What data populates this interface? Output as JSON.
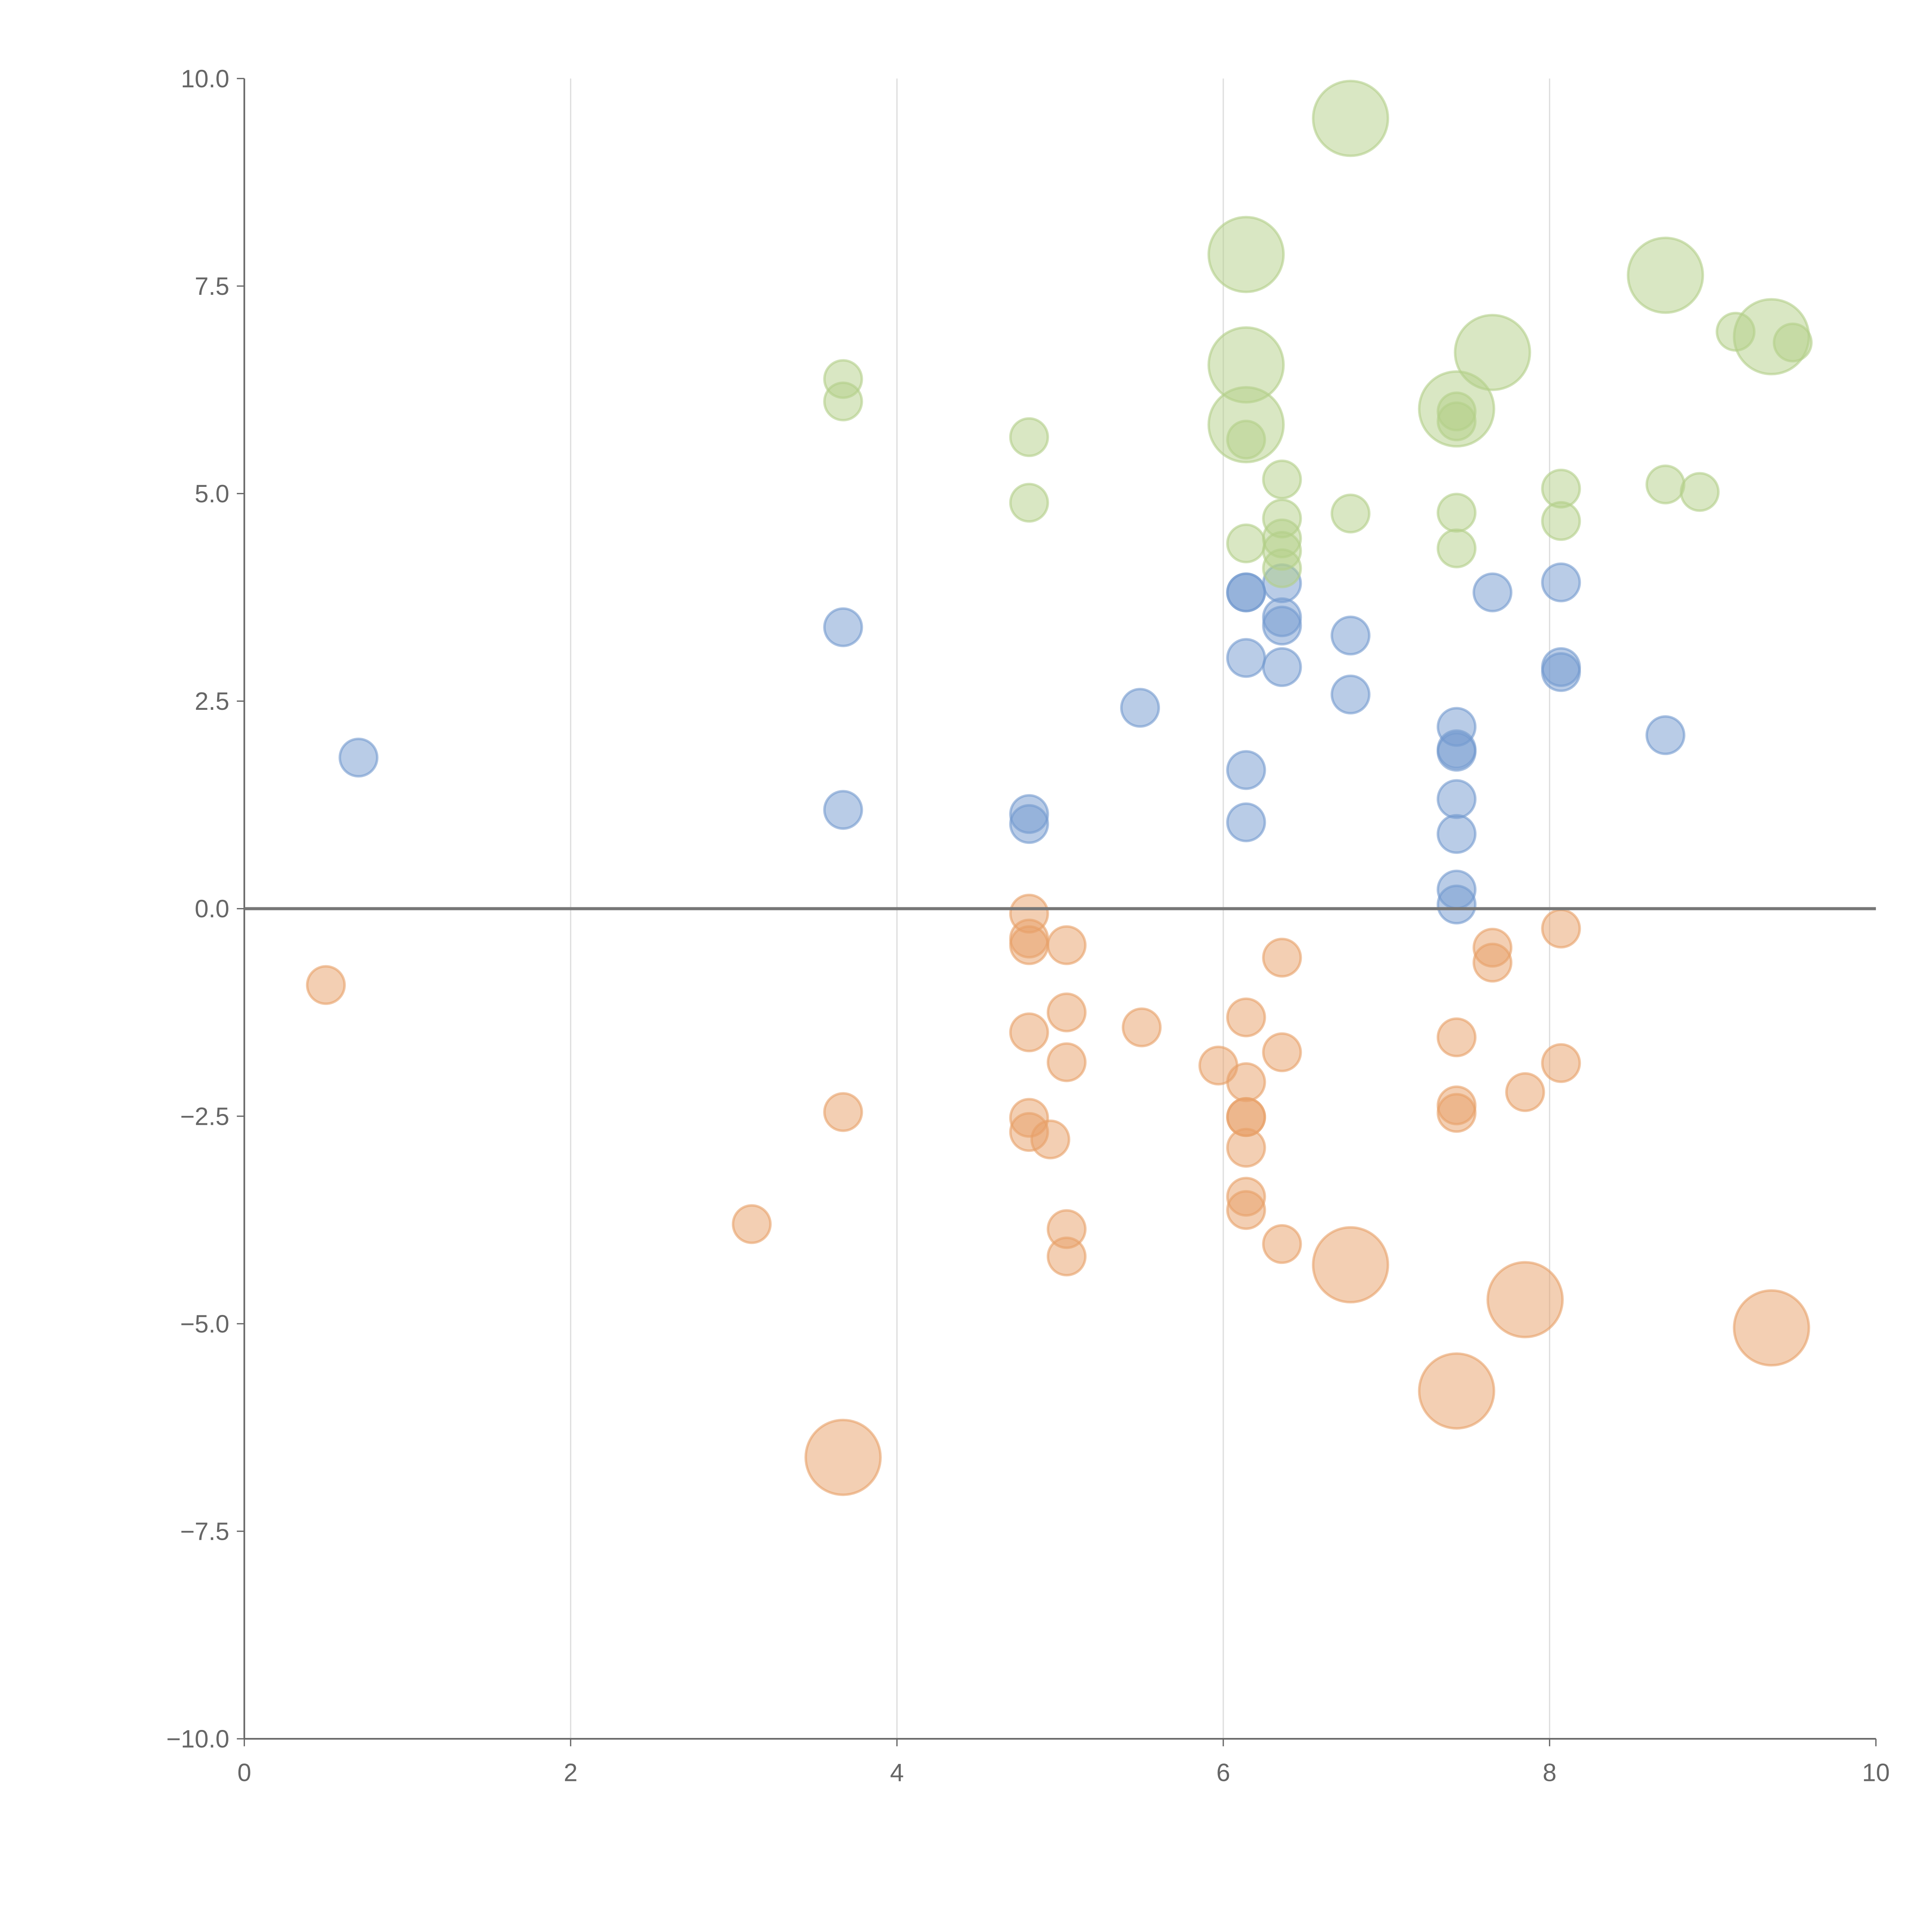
{
  "chart_data": {
    "type": "scatter",
    "title": "",
    "xlabel": "",
    "ylabel": "",
    "xlim": [
      0,
      10
    ],
    "ylim": [
      -10,
      10
    ],
    "xticks": [
      0,
      2,
      4,
      6,
      8,
      10
    ],
    "xtick_labels": [
      "0",
      "2",
      "4",
      "6",
      "8",
      "10"
    ],
    "yticks": [
      10,
      7.5,
      5,
      2.5,
      0,
      -2.5,
      -5,
      -7.5,
      -10
    ],
    "ytick_labels": [
      "10.0",
      "7.5",
      "5.0",
      "2.5",
      "0.0",
      "−2.5",
      "−5.0",
      "−7.5",
      "−10.0"
    ],
    "grid": "vertical",
    "colors": {
      "blue": "#7399cf",
      "orange": "#e8a068",
      "green": "#b3cf88",
      "axis": "#666666",
      "grid": "#dddddd"
    },
    "series": [
      {
        "name": "blue",
        "color": "#7399cf",
        "points": [
          [
            0.7,
            1.82,
            1
          ],
          [
            3.67,
            3.39,
            1
          ],
          [
            3.67,
            1.19,
            1
          ],
          [
            4.81,
            1.14,
            1
          ],
          [
            4.81,
            1.02,
            1
          ],
          [
            5.49,
            2.42,
            1
          ],
          [
            6.14,
            3.81,
            1
          ],
          [
            6.14,
            3.81,
            1
          ],
          [
            6.14,
            3.02,
            1
          ],
          [
            6.14,
            1.67,
            1
          ],
          [
            6.14,
            1.04,
            1
          ],
          [
            6.36,
            3.92,
            1
          ],
          [
            6.36,
            3.51,
            1
          ],
          [
            6.36,
            3.41,
            1
          ],
          [
            6.36,
            2.91,
            1
          ],
          [
            6.78,
            3.29,
            1
          ],
          [
            6.78,
            2.58,
            1
          ],
          [
            7.43,
            2.19,
            1
          ],
          [
            7.43,
            1.92,
            1
          ],
          [
            7.43,
            1.89,
            1
          ],
          [
            7.43,
            1.32,
            1
          ],
          [
            7.43,
            0.9,
            1
          ],
          [
            7.43,
            0.23,
            1
          ],
          [
            7.43,
            0.05,
            1
          ],
          [
            7.65,
            3.81,
            1
          ],
          [
            8.07,
            3.93,
            1
          ],
          [
            8.07,
            2.91,
            1
          ],
          [
            8.07,
            2.85,
            1
          ],
          [
            8.71,
            2.09,
            1
          ]
        ]
      },
      {
        "name": "orange",
        "color": "#e8a068",
        "points": [
          [
            0.5,
            -0.92,
            1
          ],
          [
            3.11,
            -3.8,
            1
          ],
          [
            3.67,
            -2.45,
            1
          ],
          [
            4.81,
            -0.06,
            1
          ],
          [
            4.81,
            -0.36,
            1
          ],
          [
            4.81,
            -0.44,
            1
          ],
          [
            4.81,
            -1.49,
            1
          ],
          [
            4.81,
            -2.52,
            1
          ],
          [
            4.81,
            -2.69,
            1
          ],
          [
            4.94,
            -2.78,
            1
          ],
          [
            5.04,
            -0.44,
            1
          ],
          [
            5.04,
            -1.25,
            1
          ],
          [
            5.04,
            -1.85,
            1
          ],
          [
            5.04,
            -3.86,
            1
          ],
          [
            5.04,
            -4.19,
            1
          ],
          [
            5.5,
            -1.43,
            1
          ],
          [
            5.97,
            -1.89,
            1
          ],
          [
            6.14,
            -1.31,
            1
          ],
          [
            6.14,
            -2.09,
            1
          ],
          [
            6.14,
            -2.51,
            1
          ],
          [
            6.14,
            -2.51,
            1
          ],
          [
            6.14,
            -2.88,
            1
          ],
          [
            6.14,
            -3.47,
            1
          ],
          [
            6.14,
            -3.63,
            1
          ],
          [
            6.36,
            -0.59,
            1
          ],
          [
            6.36,
            -1.73,
            1
          ],
          [
            6.36,
            -4.04,
            1
          ],
          [
            7.43,
            -1.55,
            1
          ],
          [
            7.43,
            -2.37,
            1
          ],
          [
            7.43,
            -2.46,
            1
          ],
          [
            7.65,
            -0.47,
            1
          ],
          [
            7.65,
            -0.65,
            1
          ],
          [
            7.85,
            -2.21,
            1
          ],
          [
            8.07,
            -0.24,
            1
          ],
          [
            8.07,
            -1.86,
            1
          ],
          [
            3.67,
            -6.61,
            4
          ],
          [
            6.78,
            -4.29,
            4
          ],
          [
            7.43,
            -5.81,
            4
          ],
          [
            7.85,
            -4.71,
            4
          ],
          [
            9.36,
            -5.05,
            4
          ]
        ]
      },
      {
        "name": "green",
        "color": "#b3cf88",
        "points": [
          [
            3.67,
            6.38,
            1
          ],
          [
            3.67,
            6.11,
            1
          ],
          [
            4.81,
            5.68,
            1
          ],
          [
            4.81,
            4.89,
            1
          ],
          [
            6.14,
            5.65,
            1
          ],
          [
            6.14,
            4.4,
            1
          ],
          [
            6.36,
            5.17,
            1
          ],
          [
            6.36,
            4.7,
            1
          ],
          [
            6.36,
            4.46,
            1
          ],
          [
            6.36,
            4.31,
            1
          ],
          [
            6.36,
            4.1,
            1
          ],
          [
            6.78,
            4.76,
            1
          ],
          [
            7.43,
            5.99,
            1
          ],
          [
            7.43,
            5.87,
            1
          ],
          [
            7.43,
            4.77,
            1
          ],
          [
            7.43,
            4.34,
            1
          ],
          [
            8.07,
            5.06,
            1
          ],
          [
            8.07,
            4.67,
            1
          ],
          [
            8.71,
            5.11,
            1
          ],
          [
            8.92,
            5.02,
            1
          ],
          [
            9.14,
            6.95,
            1
          ],
          [
            9.49,
            6.82,
            1
          ],
          [
            6.78,
            9.52,
            4
          ],
          [
            6.14,
            7.88,
            4
          ],
          [
            6.14,
            6.55,
            4
          ],
          [
            6.14,
            5.83,
            4
          ],
          [
            7.43,
            6.02,
            4
          ],
          [
            7.65,
            6.7,
            4
          ],
          [
            8.71,
            7.63,
            4
          ],
          [
            9.36,
            6.89,
            4
          ]
        ]
      }
    ]
  }
}
